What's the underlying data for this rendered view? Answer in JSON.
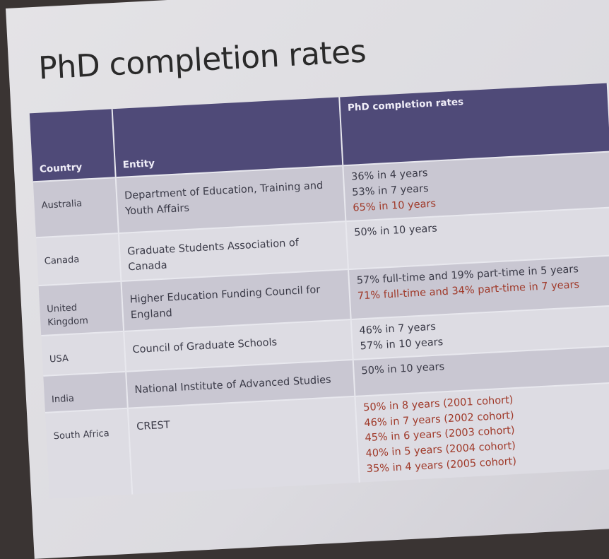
{
  "title": "PhD completion rates",
  "table": {
    "header": [
      "Country",
      "Entity",
      "PhD completion rates"
    ],
    "rows": [
      [
        "Australia",
        "Department of Education, Training and Youth Affairs",
        [
          "36% in 4 years",
          "53% in 7 years",
          "65% in 10 years"
        ]
      ],
      [
        "Canada",
        "Graduate Students Association of Canada",
        [
          "50% in 10 years"
        ]
      ],
      [
        "United Kingdom",
        "Higher Education Funding Council for England",
        [
          "57% full-time and 19% part-time in 5 years",
          "71% full-time and 34% part-time in 7 years"
        ]
      ],
      [
        "USA",
        "Council of Graduate Schools",
        [
          "46% in 7 years",
          "57% in 10 years"
        ]
      ],
      [
        "India",
        "National Institute of Advanced Studies",
        [
          "50% in 10 years"
        ]
      ],
      [
        "South Africa",
        "CREST",
        [
          "50% in 8 years (2001 cohort)",
          "46% in 7 years (2002 cohort)",
          "45% in 6 years (2003 cohort)",
          "40% in 5 years (2004 cohort)",
          "35% in 4 years (2005 cohort)"
        ]
      ]
    ]
  }
}
